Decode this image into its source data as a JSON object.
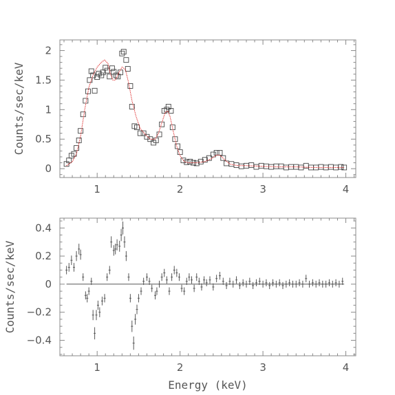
{
  "chart_data": [
    {
      "type": "scatter",
      "xlabel": "",
      "ylabel": "Counts/sec/keV",
      "xlim": [
        0.55,
        4.12
      ],
      "ylim": [
        -0.15,
        2.18
      ],
      "xticks": [
        1,
        2,
        3,
        4
      ],
      "xtick_labels": [
        "1",
        "2",
        "3",
        "4"
      ],
      "yticks": [
        0,
        0.5,
        1,
        1.5,
        2
      ],
      "ytick_labels": [
        "0",
        "0.5",
        "1",
        "1.5",
        "2"
      ],
      "series": [
        {
          "marker": "square",
          "color": "#444444",
          "points": [
            [
              0.63,
              0.08
            ],
            [
              0.66,
              0.14
            ],
            [
              0.69,
              0.22
            ],
            [
              0.72,
              0.25
            ],
            [
              0.75,
              0.35
            ],
            [
              0.78,
              0.48
            ],
            [
              0.8,
              0.64
            ],
            [
              0.83,
              0.92
            ],
            [
              0.86,
              1.15
            ],
            [
              0.89,
              1.31
            ],
            [
              0.91,
              1.5
            ],
            [
              0.93,
              1.65
            ],
            [
              0.95,
              1.58
            ],
            [
              0.97,
              1.32
            ],
            [
              1.0,
              1.55
            ],
            [
              1.02,
              1.61
            ],
            [
              1.05,
              1.58
            ],
            [
              1.07,
              1.63
            ],
            [
              1.1,
              1.71
            ],
            [
              1.12,
              1.66
            ],
            [
              1.15,
              1.56
            ],
            [
              1.18,
              1.7
            ],
            [
              1.2,
              1.64
            ],
            [
              1.23,
              1.58
            ],
            [
              1.25,
              1.56
            ],
            [
              1.28,
              1.63
            ],
            [
              1.3,
              1.95
            ],
            [
              1.32,
              1.98
            ],
            [
              1.35,
              1.84
            ],
            [
              1.37,
              1.69
            ],
            [
              1.4,
              1.4
            ],
            [
              1.42,
              1.05
            ],
            [
              1.45,
              0.72
            ],
            [
              1.48,
              0.7
            ],
            [
              1.52,
              0.6
            ],
            [
              1.56,
              0.6
            ],
            [
              1.6,
              0.54
            ],
            [
              1.64,
              0.5
            ],
            [
              1.68,
              0.44
            ],
            [
              1.71,
              0.48
            ],
            [
              1.75,
              0.58
            ],
            [
              1.78,
              0.75
            ],
            [
              1.81,
              0.98
            ],
            [
              1.84,
              1.0
            ],
            [
              1.86,
              1.05
            ],
            [
              1.89,
              0.98
            ],
            [
              1.91,
              0.7
            ],
            [
              1.94,
              0.5
            ],
            [
              1.97,
              0.38
            ],
            [
              2.0,
              0.28
            ],
            [
              2.04,
              0.14
            ],
            [
              2.08,
              0.11
            ],
            [
              2.12,
              0.12
            ],
            [
              2.16,
              0.1
            ],
            [
              2.2,
              0.09
            ],
            [
              2.25,
              0.12
            ],
            [
              2.3,
              0.15
            ],
            [
              2.35,
              0.18
            ],
            [
              2.4,
              0.24
            ],
            [
              2.44,
              0.27
            ],
            [
              2.48,
              0.27
            ],
            [
              2.52,
              0.18
            ],
            [
              2.56,
              0.09
            ],
            [
              2.62,
              0.08
            ],
            [
              2.68,
              0.06
            ],
            [
              2.74,
              0.04
            ],
            [
              2.8,
              0.05
            ],
            [
              2.86,
              0.06
            ],
            [
              2.92,
              0.03
            ],
            [
              2.98,
              0.05
            ],
            [
              3.04,
              0.04
            ],
            [
              3.1,
              0.03
            ],
            [
              3.16,
              0.04
            ],
            [
              3.22,
              0.04
            ],
            [
              3.28,
              0.02
            ],
            [
              3.34,
              0.03
            ],
            [
              3.4,
              0.03
            ],
            [
              3.46,
              0.02
            ],
            [
              3.52,
              0.05
            ],
            [
              3.58,
              0.02
            ],
            [
              3.64,
              0.02
            ],
            [
              3.7,
              0.03
            ],
            [
              3.76,
              0.02
            ],
            [
              3.82,
              0.03
            ],
            [
              3.88,
              0.02
            ],
            [
              3.94,
              0.03
            ],
            [
              3.98,
              0.02
            ]
          ]
        },
        {
          "marker": "line",
          "color": "#e03030",
          "points": [
            [
              0.63,
              0.05
            ],
            [
              0.7,
              0.12
            ],
            [
              0.75,
              0.25
            ],
            [
              0.8,
              0.55
            ],
            [
              0.85,
              1.0
            ],
            [
              0.9,
              1.38
            ],
            [
              0.95,
              1.58
            ],
            [
              1.0,
              1.72
            ],
            [
              1.05,
              1.8
            ],
            [
              1.09,
              1.84
            ],
            [
              1.13,
              1.78
            ],
            [
              1.16,
              1.6
            ],
            [
              1.19,
              1.5
            ],
            [
              1.22,
              1.5
            ],
            [
              1.26,
              1.62
            ],
            [
              1.3,
              1.72
            ],
            [
              1.34,
              1.68
            ],
            [
              1.38,
              1.45
            ],
            [
              1.42,
              1.15
            ],
            [
              1.47,
              0.88
            ],
            [
              1.52,
              0.68
            ],
            [
              1.58,
              0.58
            ],
            [
              1.64,
              0.5
            ],
            [
              1.7,
              0.5
            ],
            [
              1.74,
              0.6
            ],
            [
              1.78,
              0.78
            ],
            [
              1.82,
              0.95
            ],
            [
              1.85,
              0.98
            ],
            [
              1.88,
              0.88
            ],
            [
              1.92,
              0.62
            ],
            [
              1.96,
              0.38
            ],
            [
              2.0,
              0.22
            ],
            [
              2.05,
              0.12
            ],
            [
              2.1,
              0.1
            ],
            [
              2.2,
              0.1
            ],
            [
              2.3,
              0.12
            ],
            [
              2.38,
              0.17
            ],
            [
              2.44,
              0.23
            ],
            [
              2.48,
              0.23
            ],
            [
              2.54,
              0.15
            ],
            [
              2.6,
              0.08
            ],
            [
              2.7,
              0.05
            ],
            [
              2.8,
              0.05
            ],
            [
              3.0,
              0.04
            ],
            [
              3.2,
              0.03
            ],
            [
              3.4,
              0.03
            ],
            [
              3.6,
              0.02
            ],
            [
              3.8,
              0.02
            ],
            [
              3.98,
              0.02
            ]
          ]
        }
      ]
    },
    {
      "type": "scatter",
      "xlabel": "Energy (keV)",
      "ylabel": "Counts/sec/keV",
      "xlim": [
        0.55,
        4.12
      ],
      "ylim": [
        -0.51,
        0.47
      ],
      "xticks": [
        1,
        2,
        3,
        4
      ],
      "xtick_labels": [
        "1",
        "2",
        "3",
        "4"
      ],
      "yticks": [
        -0.4,
        -0.2,
        0,
        0.2,
        0.4
      ],
      "ytick_labels": [
        "−0.4",
        "−0.2",
        "0",
        "0.2",
        "0.4"
      ],
      "zero_line": 0,
      "series": [
        {
          "marker": "errorbar",
          "color": "#555555",
          "points": [
            [
              0.63,
              0.1
            ],
            [
              0.66,
              0.12
            ],
            [
              0.69,
              0.17
            ],
            [
              0.72,
              0.12
            ],
            [
              0.75,
              0.2
            ],
            [
              0.78,
              0.25
            ],
            [
              0.8,
              0.21
            ],
            [
              0.83,
              0.05
            ],
            [
              0.86,
              -0.08
            ],
            [
              0.88,
              -0.1
            ],
            [
              0.9,
              -0.05
            ],
            [
              0.93,
              0.02
            ],
            [
              0.95,
              -0.22
            ],
            [
              0.97,
              -0.35
            ],
            [
              0.99,
              -0.22
            ],
            [
              1.01,
              -0.15
            ],
            [
              1.03,
              -0.2
            ],
            [
              1.06,
              -0.12
            ],
            [
              1.09,
              -0.1
            ],
            [
              1.12,
              0.05
            ],
            [
              1.15,
              0.1
            ],
            [
              1.17,
              0.3
            ],
            [
              1.2,
              0.24
            ],
            [
              1.22,
              0.25
            ],
            [
              1.24,
              0.28
            ],
            [
              1.27,
              0.27
            ],
            [
              1.29,
              0.35
            ],
            [
              1.31,
              0.4
            ],
            [
              1.33,
              0.3
            ],
            [
              1.35,
              0.2
            ],
            [
              1.38,
              0.05
            ],
            [
              1.4,
              -0.1
            ],
            [
              1.42,
              -0.3
            ],
            [
              1.44,
              -0.42
            ],
            [
              1.46,
              -0.25
            ],
            [
              1.48,
              -0.18
            ],
            [
              1.5,
              -0.1
            ],
            [
              1.53,
              -0.05
            ],
            [
              1.56,
              0.02
            ],
            [
              1.6,
              0.05
            ],
            [
              1.63,
              0.02
            ],
            [
              1.66,
              -0.03
            ],
            [
              1.7,
              -0.08
            ],
            [
              1.72,
              -0.05
            ],
            [
              1.75,
              0.0
            ],
            [
              1.78,
              0.05
            ],
            [
              1.81,
              0.08
            ],
            [
              1.84,
              0.03
            ],
            [
              1.87,
              -0.05
            ],
            [
              1.9,
              0.05
            ],
            [
              1.93,
              0.1
            ],
            [
              1.96,
              0.08
            ],
            [
              1.99,
              0.05
            ],
            [
              2.02,
              -0.03
            ],
            [
              2.05,
              -0.05
            ],
            [
              2.08,
              0.02
            ],
            [
              2.11,
              0.05
            ],
            [
              2.14,
              0.03
            ],
            [
              2.17,
              -0.03
            ],
            [
              2.2,
              0.05
            ],
            [
              2.23,
              0.02
            ],
            [
              2.26,
              -0.02
            ],
            [
              2.29,
              0.03
            ],
            [
              2.32,
              0.01
            ],
            [
              2.36,
              0.03
            ],
            [
              2.4,
              -0.02
            ],
            [
              2.44,
              0.04
            ],
            [
              2.48,
              0.06
            ],
            [
              2.52,
              0.02
            ],
            [
              2.56,
              -0.01
            ],
            [
              2.6,
              0.02
            ],
            [
              2.64,
              0.0
            ],
            [
              2.68,
              0.03
            ],
            [
              2.72,
              -0.01
            ],
            [
              2.76,
              0.01
            ],
            [
              2.8,
              0.0
            ],
            [
              2.84,
              0.02
            ],
            [
              2.88,
              -0.01
            ],
            [
              2.92,
              0.01
            ],
            [
              2.96,
              0.02
            ],
            [
              3.0,
              0.0
            ],
            [
              3.04,
              0.01
            ],
            [
              3.08,
              -0.01
            ],
            [
              3.12,
              0.01
            ],
            [
              3.16,
              0.0
            ],
            [
              3.2,
              0.01
            ],
            [
              3.24,
              -0.01
            ],
            [
              3.28,
              0.0
            ],
            [
              3.32,
              0.01
            ],
            [
              3.36,
              0.0
            ],
            [
              3.4,
              0.0
            ],
            [
              3.44,
              0.01
            ],
            [
              3.48,
              0.0
            ],
            [
              3.52,
              0.04
            ],
            [
              3.56,
              0.0
            ],
            [
              3.6,
              0.01
            ],
            [
              3.64,
              0.0
            ],
            [
              3.68,
              0.01
            ],
            [
              3.72,
              0.0
            ],
            [
              3.76,
              0.0
            ],
            [
              3.8,
              0.01
            ],
            [
              3.84,
              0.0
            ],
            [
              3.88,
              0.01
            ],
            [
              3.92,
              0.0
            ],
            [
              3.96,
              0.02
            ]
          ]
        }
      ]
    }
  ]
}
